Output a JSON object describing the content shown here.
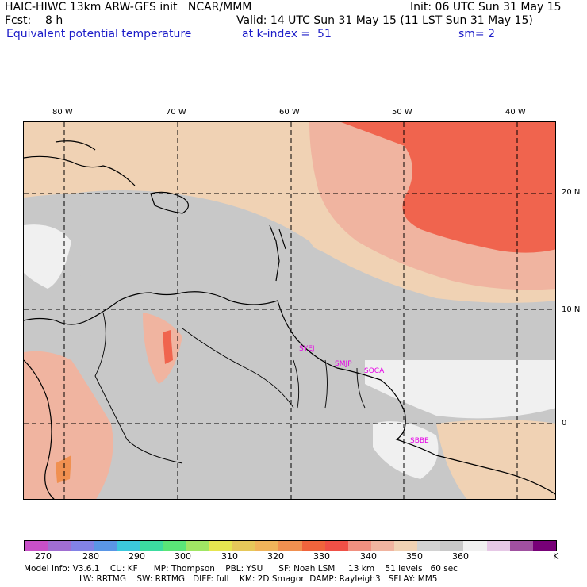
{
  "header": {
    "line1_left": "HAIC-HIWC 13km ARW-GFS init   NCAR/MMM",
    "line1_right": "Init: 06 UTC Sun 31 May 15",
    "line2_left": "Fcst:    8 h",
    "line2_right": "Valid: 14 UTC Sun 31 May 15 (11 LST Sun 31 May 15)",
    "line3_left": "Equivalent potential temperature",
    "line3_mid": "at k-index =  51",
    "line3_right": "sm= 2"
  },
  "longitude_ticks": [
    "80 W",
    "70 W",
    "60 W",
    "50 W",
    "40 W"
  ],
  "latitude_ticks": [
    "20 N",
    "10 N",
    "0"
  ],
  "stations": [
    "SYEJ",
    "SMJP",
    "SOCA",
    "SBBE"
  ],
  "colorbar": {
    "colors": [
      "#c850c8",
      "#a06ed2",
      "#8282e6",
      "#5a96e6",
      "#3cc8dc",
      "#3cdca0",
      "#5ae678",
      "#a0e664",
      "#e6e650",
      "#e6c85a",
      "#f0b45a",
      "#f09050",
      "#f0643c",
      "#f05046",
      "#f09080",
      "#f0b4a0",
      "#f0d2b4",
      "#d2d2d2",
      "#c8c8c8",
      "#f0f0f0",
      "#e6c8e6",
      "#a050a0",
      "#780078"
    ],
    "labels": [
      "270",
      "280",
      "290",
      "300",
      "310",
      "320",
      "330",
      "340",
      "350",
      "360",
      "K"
    ]
  },
  "model_info": {
    "line1": "Model Info: V3.6.1    CU: KF      MP: Thompson    PBL: YSU      SF: Noah LSM     13 km    51 levels   60 sec",
    "line2": "LW: RRTMG    SW: RRTMG   DIFF: full    KM: 2D Smagor  DAMP: Rayleigh3   SFLAY: MM5"
  },
  "colors": {
    "gray": "#c8c8c8",
    "light": "#f0f0f0",
    "peach": "#f0d2b4",
    "salmon": "#f0b4a0",
    "red": "#f0644e",
    "station": "#e600e6"
  }
}
